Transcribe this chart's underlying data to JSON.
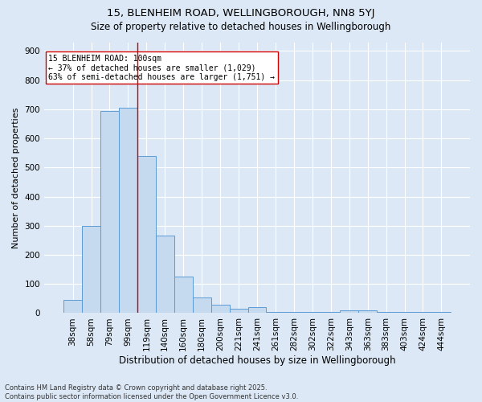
{
  "title_line1": "15, BLENHEIM ROAD, WELLINGBOROUGH, NN8 5YJ",
  "title_line2": "Size of property relative to detached houses in Wellingborough",
  "xlabel": "Distribution of detached houses by size in Wellingborough",
  "ylabel": "Number of detached properties",
  "categories": [
    "38sqm",
    "58sqm",
    "79sqm",
    "99sqm",
    "119sqm",
    "140sqm",
    "160sqm",
    "180sqm",
    "200sqm",
    "221sqm",
    "241sqm",
    "261sqm",
    "282sqm",
    "302sqm",
    "322sqm",
    "343sqm",
    "363sqm",
    "383sqm",
    "403sqm",
    "424sqm",
    "444sqm"
  ],
  "values": [
    45,
    300,
    695,
    705,
    540,
    265,
    125,
    55,
    30,
    15,
    20,
    5,
    5,
    5,
    5,
    10,
    10,
    5,
    5,
    5,
    5
  ],
  "bar_color": "#c5d9ef",
  "bar_edgecolor": "#5b9bd5",
  "bar_linewidth": 0.7,
  "vline_x_index": 3,
  "vline_color": "#cc0000",
  "annotation_text": "15 BLENHEIM ROAD: 100sqm\n← 37% of detached houses are smaller (1,029)\n63% of semi-detached houses are larger (1,751) →",
  "annotation_box_edgecolor": "#cc0000",
  "annotation_box_facecolor": "#ffffff",
  "annotation_fontsize": 7,
  "ylim": [
    0,
    930
  ],
  "yticks": [
    0,
    100,
    200,
    300,
    400,
    500,
    600,
    700,
    800,
    900
  ],
  "background_color": "#dce8f5",
  "grid_color": "#ffffff",
  "title_fontsize": 9.5,
  "subtitle_fontsize": 8.5,
  "xlabel_fontsize": 8.5,
  "ylabel_fontsize": 8,
  "tick_fontsize": 7.5,
  "footnote": "Contains HM Land Registry data © Crown copyright and database right 2025.\nContains public sector information licensed under the Open Government Licence v3.0.",
  "footnote_fontsize": 6
}
